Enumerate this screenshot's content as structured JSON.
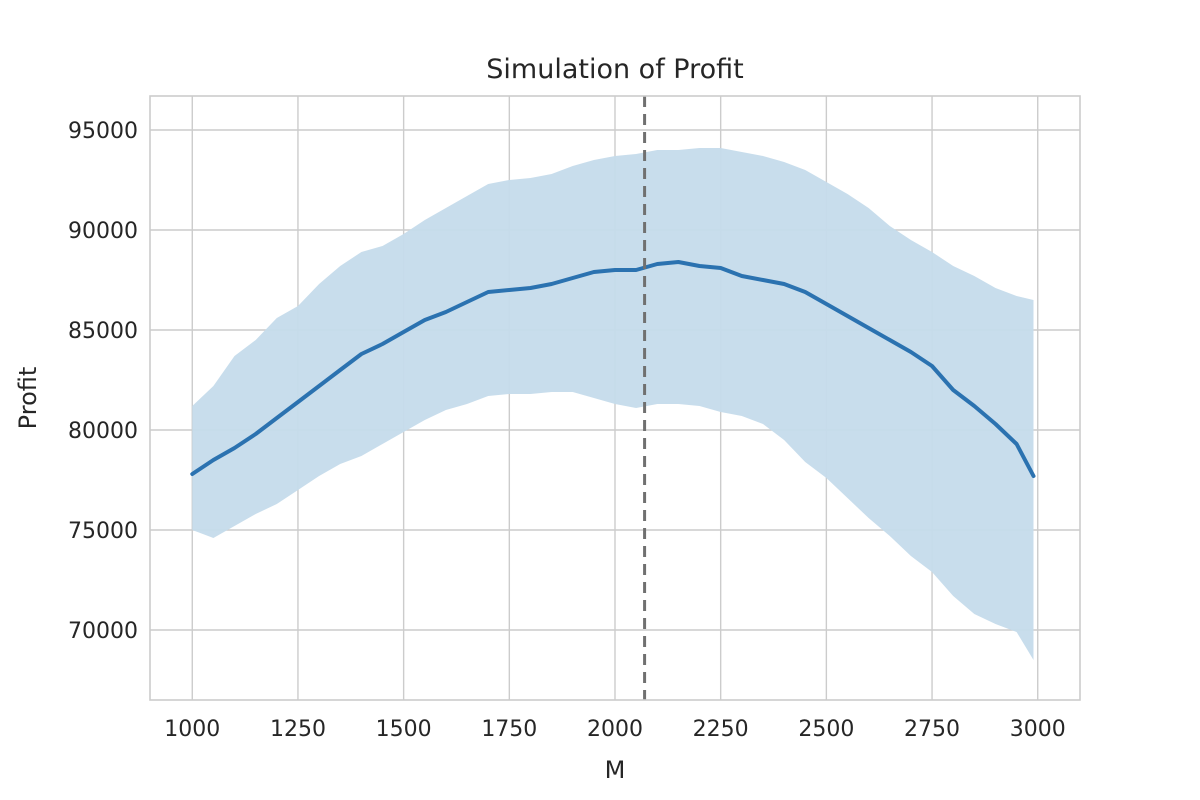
{
  "chart_data": {
    "type": "line",
    "title": "Simulation of Profit",
    "xlabel": "M",
    "ylabel": "Profit",
    "xlim": [
      900,
      3100
    ],
    "ylim": [
      66500,
      96700
    ],
    "xticks": [
      1000,
      1250,
      1500,
      1750,
      2000,
      2250,
      2500,
      2750,
      3000
    ],
    "yticks": [
      70000,
      75000,
      80000,
      85000,
      90000,
      95000
    ],
    "grid": true,
    "legend": "none",
    "colors": {
      "line": "#2b72b0",
      "band": "#c5dbeb",
      "vline": "#707070"
    },
    "series": [
      {
        "x": [
          1000,
          1050,
          1100,
          1150,
          1200,
          1250,
          1300,
          1350,
          1400,
          1450,
          1500,
          1550,
          1600,
          1650,
          1700,
          1750,
          1800,
          1850,
          1900,
          1950,
          2000,
          2050,
          2100,
          2150,
          2200,
          2250,
          2300,
          2350,
          2400,
          2450,
          2500,
          2550,
          2600,
          2650,
          2700,
          2750,
          2800,
          2850,
          2900,
          2950,
          2990
        ],
        "y": [
          77800,
          78500,
          79100,
          79800,
          80600,
          81400,
          82200,
          83000,
          83800,
          84300,
          84900,
          85500,
          85900,
          86400,
          86900,
          87000,
          87100,
          87300,
          87600,
          87900,
          88000,
          88000,
          88300,
          88400,
          88200,
          88100,
          87700,
          87500,
          87300,
          86900,
          86300,
          85700,
          85100,
          84500,
          83900,
          83200,
          82000,
          81200,
          80300,
          79300,
          77700
        ],
        "lower": [
          75000,
          74600,
          75200,
          75800,
          76300,
          77000,
          77700,
          78300,
          78700,
          79300,
          79900,
          80500,
          81000,
          81300,
          81700,
          81800,
          81800,
          81900,
          81900,
          81600,
          81300,
          81100,
          81300,
          81300,
          81200,
          80900,
          80700,
          80300,
          79500,
          78400,
          77600,
          76600,
          75600,
          74700,
          73700,
          72900,
          71700,
          70800,
          70300,
          69900,
          68500
        ],
        "upper": [
          81200,
          82200,
          83700,
          84500,
          85600,
          86200,
          87300,
          88200,
          88900,
          89200,
          89800,
          90500,
          91100,
          91700,
          92300,
          92500,
          92600,
          92800,
          93200,
          93500,
          93700,
          93800,
          94000,
          94000,
          94100,
          94100,
          93900,
          93700,
          93400,
          93000,
          92400,
          91800,
          91100,
          90200,
          89500,
          88900,
          88200,
          87700,
          87100,
          86700,
          86500
        ]
      }
    ],
    "vline_x": 2070
  }
}
